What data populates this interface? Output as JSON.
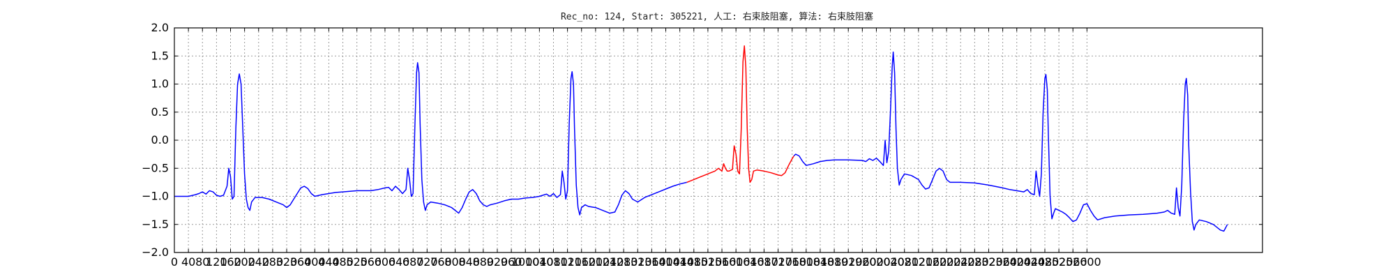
{
  "chart_data": {
    "type": "line",
    "title": "Rec_no: 124, Start: 305221, 人工: 右束肢阻塞, 算法: 右束肢阻塞",
    "xlabel": "",
    "ylabel": "",
    "xlim": [
      0,
      3100
    ],
    "ylim": [
      -2.0,
      2.0
    ],
    "grid": true,
    "yticks": [
      2.0,
      1.5,
      1.0,
      0.5,
      0.0,
      -0.5,
      -1.0,
      -1.5,
      -2.0
    ],
    "ytick_labels": [
      "2.0",
      "1.5",
      "1.0",
      "0.5",
      "0.0",
      "−0.5",
      "−1.0",
      "−1.5",
      "−2.0"
    ],
    "xticks": [
      0,
      40,
      80,
      120,
      160,
      200,
      240,
      280,
      320,
      360,
      400,
      440,
      480,
      520,
      560,
      600,
      640,
      680,
      720,
      760,
      800,
      840,
      880,
      920,
      960,
      1000,
      1040,
      1080,
      1120,
      1160,
      1200,
      1240,
      1280,
      1320,
      1360,
      1400,
      1440,
      1480,
      1520,
      1560,
      1600,
      1640,
      1680,
      1720,
      1760,
      1800,
      1840,
      1880,
      1920,
      1960,
      2000,
      2040,
      2080,
      2120,
      2160,
      2200,
      2240,
      2280,
      2320,
      2360,
      2400,
      2440,
      2480,
      2520,
      2560,
      2600
    ],
    "xtick_labels": [
      "0",
      "40",
      "80",
      "120",
      "160",
      "200",
      "240",
      "280",
      "320",
      "360",
      "400",
      "440",
      "480",
      "520",
      "560",
      "600",
      "640",
      "680",
      "720",
      "760",
      "800",
      "840",
      "880",
      "920",
      "960",
      "1000",
      "1040",
      "1080",
      "1120",
      "1160",
      "1200",
      "1240",
      "1280",
      "1320",
      "1360",
      "1400",
      "1440",
      "1480",
      "1520",
      "1560",
      "1600",
      "1640",
      "1680",
      "1720",
      "1760",
      "1800",
      "1840",
      "1880",
      "1920",
      "1960",
      "2000",
      "2040",
      "2080",
      "2120",
      "2160",
      "2200",
      "2240",
      "2280",
      "2320",
      "2360",
      "2400",
      "2440",
      "2480",
      "2520",
      "2560",
      "2600"
    ],
    "series": [
      {
        "name": "ecg",
        "color": "#0000ff",
        "points": [
          [
            0,
            -1.0
          ],
          [
            40,
            -1.0
          ],
          [
            60,
            -0.97
          ],
          [
            70,
            -0.95
          ],
          [
            80,
            -0.92
          ],
          [
            90,
            -0.96
          ],
          [
            100,
            -0.9
          ],
          [
            110,
            -0.92
          ],
          [
            120,
            -0.98
          ],
          [
            130,
            -1.0
          ],
          [
            140,
            -0.98
          ],
          [
            150,
            -0.82
          ],
          [
            155,
            -0.5
          ],
          [
            160,
            -0.65
          ],
          [
            165,
            -1.05
          ],
          [
            170,
            -1.0
          ],
          [
            175,
            0.2
          ],
          [
            180,
            1.0
          ],
          [
            185,
            1.18
          ],
          [
            190,
            1.0
          ],
          [
            195,
            0.2
          ],
          [
            200,
            -0.6
          ],
          [
            205,
            -1.05
          ],
          [
            210,
            -1.2
          ],
          [
            215,
            -1.25
          ],
          [
            220,
            -1.1
          ],
          [
            230,
            -1.02
          ],
          [
            250,
            -1.02
          ],
          [
            270,
            -1.05
          ],
          [
            290,
            -1.1
          ],
          [
            310,
            -1.15
          ],
          [
            320,
            -1.2
          ],
          [
            330,
            -1.15
          ],
          [
            340,
            -1.05
          ],
          [
            350,
            -0.95
          ],
          [
            360,
            -0.85
          ],
          [
            370,
            -0.82
          ],
          [
            380,
            -0.86
          ],
          [
            390,
            -0.95
          ],
          [
            400,
            -1.0
          ],
          [
            420,
            -0.97
          ],
          [
            440,
            -0.95
          ],
          [
            460,
            -0.93
          ],
          [
            480,
            -0.92
          ],
          [
            520,
            -0.9
          ],
          [
            560,
            -0.9
          ],
          [
            580,
            -0.88
          ],
          [
            600,
            -0.85
          ],
          [
            610,
            -0.84
          ],
          [
            620,
            -0.9
          ],
          [
            630,
            -0.82
          ],
          [
            640,
            -0.88
          ],
          [
            650,
            -0.95
          ],
          [
            660,
            -0.88
          ],
          [
            665,
            -0.5
          ],
          [
            670,
            -0.7
          ],
          [
            675,
            -1.0
          ],
          [
            680,
            -0.95
          ],
          [
            685,
            0.2
          ],
          [
            690,
            1.2
          ],
          [
            693,
            1.38
          ],
          [
            697,
            1.2
          ],
          [
            700,
            0.3
          ],
          [
            705,
            -0.7
          ],
          [
            710,
            -1.1
          ],
          [
            715,
            -1.25
          ],
          [
            720,
            -1.15
          ],
          [
            730,
            -1.1
          ],
          [
            750,
            -1.12
          ],
          [
            770,
            -1.15
          ],
          [
            790,
            -1.2
          ],
          [
            800,
            -1.25
          ],
          [
            810,
            -1.3
          ],
          [
            820,
            -1.2
          ],
          [
            830,
            -1.05
          ],
          [
            840,
            -0.92
          ],
          [
            850,
            -0.88
          ],
          [
            860,
            -0.95
          ],
          [
            870,
            -1.08
          ],
          [
            880,
            -1.15
          ],
          [
            890,
            -1.18
          ],
          [
            900,
            -1.15
          ],
          [
            920,
            -1.12
          ],
          [
            940,
            -1.08
          ],
          [
            960,
            -1.05
          ],
          [
            980,
            -1.05
          ],
          [
            1000,
            -1.03
          ],
          [
            1020,
            -1.02
          ],
          [
            1040,
            -1.0
          ],
          [
            1050,
            -0.98
          ],
          [
            1060,
            -0.96
          ],
          [
            1070,
            -1.0
          ],
          [
            1080,
            -0.95
          ],
          [
            1090,
            -1.02
          ],
          [
            1100,
            -0.97
          ],
          [
            1105,
            -0.55
          ],
          [
            1110,
            -0.75
          ],
          [
            1115,
            -1.05
          ],
          [
            1120,
            -0.9
          ],
          [
            1125,
            0.3
          ],
          [
            1130,
            1.1
          ],
          [
            1133,
            1.22
          ],
          [
            1137,
            1.0
          ],
          [
            1140,
            0.2
          ],
          [
            1145,
            -0.8
          ],
          [
            1150,
            -1.2
          ],
          [
            1155,
            -1.33
          ],
          [
            1160,
            -1.2
          ],
          [
            1170,
            -1.15
          ],
          [
            1180,
            -1.18
          ],
          [
            1200,
            -1.2
          ],
          [
            1220,
            -1.25
          ],
          [
            1240,
            -1.3
          ],
          [
            1255,
            -1.28
          ],
          [
            1265,
            -1.15
          ],
          [
            1275,
            -0.98
          ],
          [
            1285,
            -0.9
          ],
          [
            1295,
            -0.95
          ],
          [
            1305,
            -1.05
          ],
          [
            1320,
            -1.1
          ],
          [
            1340,
            -1.02
          ],
          [
            1360,
            -0.97
          ],
          [
            1380,
            -0.92
          ],
          [
            1400,
            -0.87
          ],
          [
            1420,
            -0.82
          ],
          [
            1440,
            -0.78
          ],
          [
            1460,
            -0.75
          ]
        ]
      },
      {
        "name": "highlighted-beat",
        "color": "#ff0000",
        "points": [
          [
            1460,
            -0.75
          ],
          [
            1480,
            -0.7
          ],
          [
            1500,
            -0.65
          ],
          [
            1520,
            -0.6
          ],
          [
            1540,
            -0.55
          ],
          [
            1550,
            -0.5
          ],
          [
            1560,
            -0.55
          ],
          [
            1565,
            -0.42
          ],
          [
            1570,
            -0.5
          ],
          [
            1575,
            -0.55
          ],
          [
            1580,
            -0.55
          ],
          [
            1590,
            -0.52
          ],
          [
            1595,
            -0.1
          ],
          [
            1600,
            -0.25
          ],
          [
            1605,
            -0.55
          ],
          [
            1610,
            -0.6
          ],
          [
            1615,
            0.2
          ],
          [
            1620,
            1.4
          ],
          [
            1624,
            1.68
          ],
          [
            1628,
            1.3
          ],
          [
            1632,
            0.2
          ],
          [
            1636,
            -0.5
          ],
          [
            1640,
            -0.75
          ],
          [
            1645,
            -0.7
          ],
          [
            1650,
            -0.55
          ],
          [
            1660,
            -0.53
          ],
          [
            1680,
            -0.55
          ],
          [
            1700,
            -0.58
          ],
          [
            1720,
            -0.62
          ],
          [
            1730,
            -0.63
          ],
          [
            1740,
            -0.58
          ],
          [
            1750,
            -0.45
          ],
          [
            1760,
            -0.33
          ],
          [
            1765,
            -0.28
          ]
        ]
      },
      {
        "name": "ecg-after",
        "color": "#0000ff",
        "points": [
          [
            1765,
            -0.28
          ],
          [
            1770,
            -0.25
          ],
          [
            1780,
            -0.28
          ],
          [
            1790,
            -0.38
          ],
          [
            1800,
            -0.45
          ],
          [
            1820,
            -0.42
          ],
          [
            1840,
            -0.38
          ],
          [
            1860,
            -0.36
          ],
          [
            1880,
            -0.35
          ],
          [
            1920,
            -0.35
          ],
          [
            1960,
            -0.36
          ],
          [
            1970,
            -0.38
          ],
          [
            1980,
            -0.33
          ],
          [
            1990,
            -0.36
          ],
          [
            2000,
            -0.32
          ],
          [
            2010,
            -0.38
          ],
          [
            2020,
            -0.45
          ],
          [
            2025,
            0.0
          ],
          [
            2030,
            -0.4
          ],
          [
            2035,
            -0.2
          ],
          [
            2040,
            0.5
          ],
          [
            2045,
            1.3
          ],
          [
            2048,
            1.57
          ],
          [
            2052,
            1.2
          ],
          [
            2056,
            0.2
          ],
          [
            2060,
            -0.5
          ],
          [
            2065,
            -0.8
          ],
          [
            2070,
            -0.7
          ],
          [
            2080,
            -0.6
          ],
          [
            2100,
            -0.63
          ],
          [
            2120,
            -0.7
          ],
          [
            2130,
            -0.8
          ],
          [
            2140,
            -0.87
          ],
          [
            2150,
            -0.85
          ],
          [
            2160,
            -0.7
          ],
          [
            2170,
            -0.55
          ],
          [
            2180,
            -0.5
          ],
          [
            2190,
            -0.55
          ],
          [
            2200,
            -0.7
          ],
          [
            2210,
            -0.75
          ],
          [
            2240,
            -0.75
          ],
          [
            2280,
            -0.76
          ],
          [
            2320,
            -0.8
          ],
          [
            2360,
            -0.85
          ],
          [
            2380,
            -0.88
          ],
          [
            2400,
            -0.9
          ],
          [
            2420,
            -0.92
          ],
          [
            2430,
            -0.88
          ],
          [
            2440,
            -0.95
          ],
          [
            2450,
            -0.97
          ],
          [
            2455,
            -0.55
          ],
          [
            2460,
            -0.8
          ],
          [
            2465,
            -1.0
          ],
          [
            2470,
            -0.6
          ],
          [
            2475,
            0.5
          ],
          [
            2480,
            1.1
          ],
          [
            2483,
            1.17
          ],
          [
            2487,
            0.9
          ],
          [
            2490,
            0.1
          ],
          [
            2495,
            -1.0
          ],
          [
            2500,
            -1.4
          ],
          [
            2505,
            -1.3
          ],
          [
            2510,
            -1.22
          ],
          [
            2520,
            -1.25
          ],
          [
            2530,
            -1.28
          ],
          [
            2540,
            -1.32
          ],
          [
            2550,
            -1.38
          ],
          [
            2560,
            -1.45
          ],
          [
            2570,
            -1.42
          ],
          [
            2580,
            -1.3
          ],
          [
            2590,
            -1.15
          ],
          [
            2600,
            -1.13
          ],
          [
            2610,
            -1.25
          ],
          [
            2620,
            -1.35
          ],
          [
            2630,
            -1.42
          ],
          [
            2650,
            -1.38
          ],
          [
            2680,
            -1.35
          ],
          [
            2720,
            -1.33
          ],
          [
            2760,
            -1.32
          ],
          [
            2800,
            -1.3
          ],
          [
            2820,
            -1.28
          ],
          [
            2830,
            -1.25
          ],
          [
            2840,
            -1.3
          ],
          [
            2850,
            -1.32
          ],
          [
            2855,
            -0.85
          ],
          [
            2860,
            -1.2
          ],
          [
            2865,
            -1.35
          ],
          [
            2870,
            -0.8
          ],
          [
            2875,
            0.3
          ],
          [
            2880,
            1.0
          ],
          [
            2883,
            1.1
          ],
          [
            2887,
            0.8
          ],
          [
            2890,
            -0.1
          ],
          [
            2895,
            -0.9
          ],
          [
            2900,
            -1.45
          ],
          [
            2905,
            -1.6
          ],
          [
            2910,
            -1.5
          ],
          [
            2920,
            -1.42
          ],
          [
            2940,
            -1.45
          ],
          [
            2960,
            -1.5
          ],
          [
            2970,
            -1.55
          ],
          [
            2980,
            -1.6
          ],
          [
            2990,
            -1.62
          ],
          [
            3000,
            -1.5
          ]
        ]
      }
    ]
  }
}
